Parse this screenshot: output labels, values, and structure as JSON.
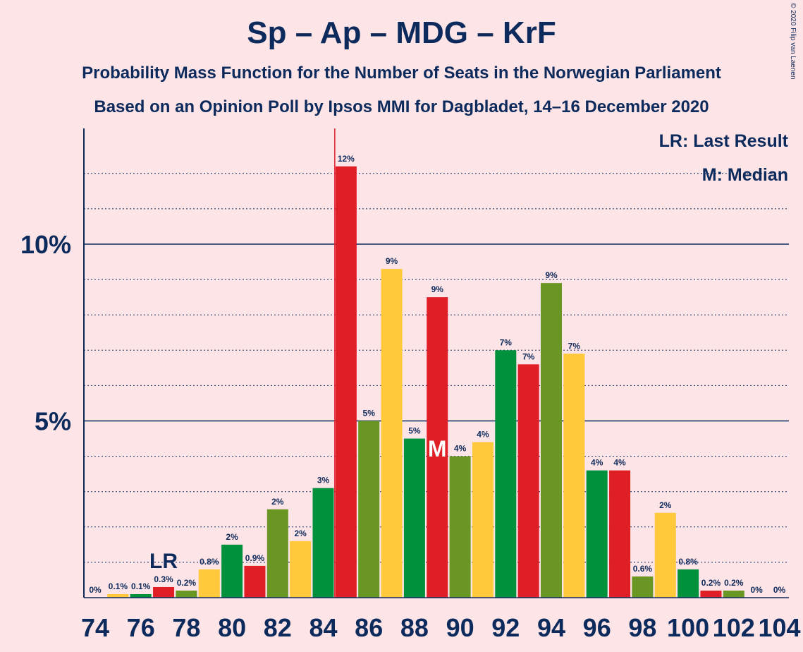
{
  "title": "Sp – Ap – MDG – KrF",
  "subtitle1": "Probability Mass Function for the Number of Seats in the Norwegian Parliament",
  "subtitle2": "Based on an Opinion Poll by Ipsos MMI for Dagbladet, 14–16 December 2020",
  "copyright": "© 2020 Filip van Laenen",
  "legend": {
    "last_result": "LR: Last Result",
    "median": "M: Median"
  },
  "markers": {
    "last_result_label": "LR",
    "last_result_seat": 77,
    "median_label": "M",
    "median_seat": 89,
    "majority_seat": 85
  },
  "colors": {
    "background": "#fde4e6",
    "text": "#0d2a5c",
    "sp_green": "#00913d",
    "ap_red": "#e01e26",
    "mdg_green": "#6a9624",
    "krf_yellow": "#ffc93b",
    "majority_line": "#e01e26"
  },
  "chart_data": {
    "type": "bar",
    "x": [
      74,
      75,
      76,
      77,
      78,
      79,
      80,
      81,
      82,
      83,
      84,
      85,
      86,
      87,
      88,
      89,
      90,
      91,
      92,
      93,
      94,
      95,
      96,
      97,
      98,
      99,
      100,
      101,
      102,
      103,
      104
    ],
    "values": [
      0,
      0.1,
      0.1,
      0.3,
      0.2,
      0.8,
      1.5,
      0.9,
      2.5,
      1.6,
      3.1,
      12.2,
      5.0,
      9.3,
      4.5,
      8.5,
      4.0,
      4.4,
      7.0,
      6.6,
      8.9,
      6.9,
      3.6,
      3.6,
      0.6,
      2.4,
      0.8,
      0.2,
      0.2,
      0,
      0
    ],
    "labels": [
      "0%",
      "0.1%",
      "0.1%",
      "0.3%",
      "0.2%",
      "0.8%",
      "2%",
      "0.9%",
      "2%",
      "2%",
      "3%",
      "12%",
      "5%",
      "9%",
      "5%",
      "9%",
      "4%",
      "4%",
      "7%",
      "7%",
      "9%",
      "7%",
      "4%",
      "4%",
      "0.6%",
      "2%",
      "0.8%",
      "0.2%",
      "0.2%",
      "0%",
      "0%"
    ],
    "bar_colors": [
      "sp_green",
      "krf_yellow",
      "sp_green",
      "ap_red",
      "mdg_green",
      "krf_yellow",
      "sp_green",
      "ap_red",
      "mdg_green",
      "krf_yellow",
      "sp_green",
      "ap_red",
      "mdg_green",
      "krf_yellow",
      "sp_green",
      "ap_red",
      "mdg_green",
      "krf_yellow",
      "sp_green",
      "ap_red",
      "mdg_green",
      "krf_yellow",
      "sp_green",
      "ap_red",
      "mdg_green",
      "krf_yellow",
      "sp_green",
      "ap_red",
      "mdg_green",
      "krf_yellow",
      "sp_green"
    ],
    "xticks": [
      74,
      76,
      78,
      80,
      82,
      84,
      86,
      88,
      90,
      92,
      94,
      96,
      98,
      100,
      102,
      104
    ],
    "yticks": [
      {
        "value": 5,
        "label": "5%"
      },
      {
        "value": 10,
        "label": "10%"
      }
    ],
    "ylim": [
      0,
      13
    ],
    "grid": "dotted every 1%, solid at 5% and 10%"
  }
}
